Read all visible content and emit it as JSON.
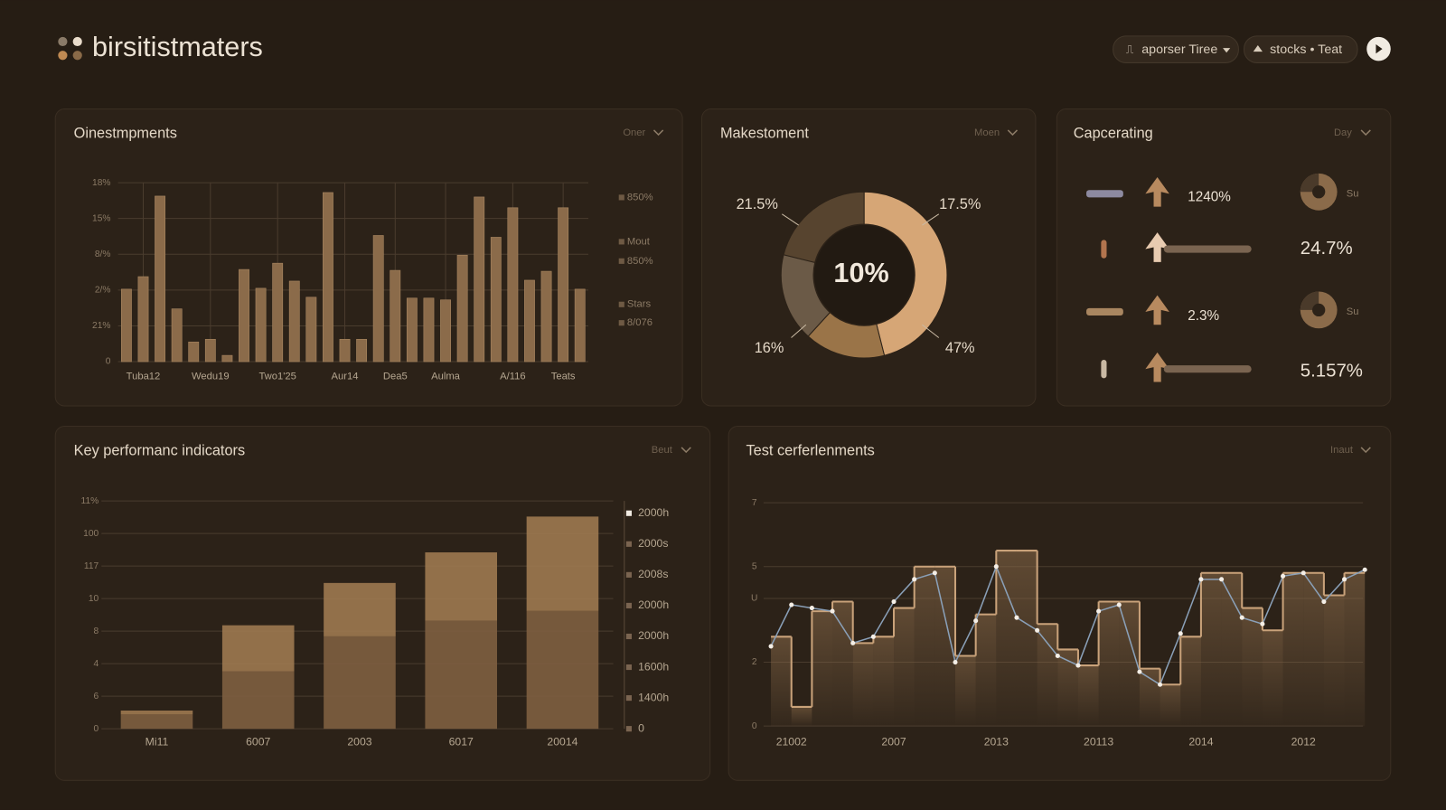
{
  "header": {
    "brand": "birsitistmaters",
    "buttons": [
      "aporser Tiree",
      "stocks • Teat"
    ]
  },
  "chart_data": [
    {
      "type": "bar",
      "title": "Oinestmpments",
      "dropdown": "Oner",
      "categories": [
        null,
        "Tuba12",
        null,
        null,
        null,
        "Wedu19",
        null,
        null,
        null,
        "Two1'25",
        null,
        null,
        null,
        "Aur14",
        null,
        null,
        "Dea5",
        null,
        null,
        "Aulma",
        null,
        null,
        null,
        "A/116",
        null,
        null,
        "Teats",
        null
      ],
      "values": [
        8.1,
        9.5,
        18.5,
        5.9,
        2.2,
        2.5,
        0.7,
        10.3,
        8.2,
        11,
        9,
        7.2,
        18.9,
        2.5,
        2.5,
        14.1,
        10.2,
        7.1,
        7.1,
        6.9,
        11.9,
        18.4,
        13.9,
        17.2,
        9.1,
        10.1,
        17.2,
        8.1
      ],
      "color": "#8b6b4a",
      "ylim": [
        0,
        20
      ],
      "yticks": [
        0,
        {
          "value": 4,
          "label": "21%"
        },
        {
          "value": 8,
          "label": "2/%"
        },
        {
          "value": 12,
          "label": "8/%"
        },
        {
          "value": 16,
          "label": "15%"
        },
        {
          "value": 20,
          "label": "18%"
        }
      ],
      "side_labels": [
        "850%",
        "Mout",
        "850%",
        "Stars",
        "8/076"
      ],
      "grid": true
    },
    {
      "type": "donut",
      "title": "Makestoment",
      "dropdown": "Moen",
      "center_label": "10%",
      "values": [
        47,
        16,
        17.5,
        21.5
      ],
      "value_labels": [
        "47%",
        "16%",
        "17.5%",
        "21.5%"
      ],
      "colors": [
        "#d6a676",
        "#9a7448",
        "#6b5a47",
        "#57442f"
      ]
    },
    {
      "type": "indicator",
      "title": "Capcerating",
      "dropdown": "Day",
      "values": [
        1240,
        24.7,
        2.3,
        5.157
      ],
      "value_labels": [
        "1240%",
        "24.7%",
        "2.3%",
        "5.157%"
      ],
      "gauge_labels": [
        "Su",
        null,
        "Su",
        null
      ]
    },
    {
      "type": "stacked-bar",
      "title": "Key performanc indicators",
      "dropdown": "Beut",
      "categories": [
        "Mi11",
        "6007",
        "2003",
        "6017",
        "20014"
      ],
      "series": [
        {
          "color": "#7d5e40",
          "values": [
            2.2,
            8.8,
            14.2,
            16.6,
            18.1
          ]
        },
        {
          "color": "#9b774f",
          "values": [
            0.6,
            7.1,
            8.2,
            10.5,
            14.5
          ]
        }
      ],
      "ylim": [
        0,
        35
      ],
      "yticks": [
        0,
        {
          "value": 5,
          "label": "6"
        },
        {
          "value": 10,
          "label": "4"
        },
        {
          "value": 15,
          "label": "8"
        },
        {
          "value": 20,
          "label": "10"
        },
        {
          "value": 25,
          "label": "117"
        },
        {
          "value": 30,
          "label": "100"
        },
        {
          "value": 35,
          "label": "11%"
        }
      ],
      "y2lim": [
        0,
        7.4
      ],
      "y2ticks": [
        0,
        {
          "value": 1,
          "label": "1400h"
        },
        {
          "value": 2,
          "label": "1600h"
        },
        {
          "value": 3,
          "label": "2000h"
        },
        {
          "value": 4,
          "label": "2000h"
        },
        {
          "value": 5,
          "label": "2008s"
        },
        {
          "value": 6,
          "label": "2000s"
        },
        {
          "value": 7,
          "label": "2000h"
        }
      ],
      "grid": true
    },
    {
      "type": "line",
      "title": "Test cerferlenments",
      "dropdown": "Inaut",
      "categories": [
        null,
        "21002",
        null,
        null,
        null,
        null,
        "2007",
        null,
        null,
        null,
        null,
        "2013",
        null,
        null,
        null,
        null,
        "20113",
        null,
        null,
        null,
        null,
        "2014",
        null,
        null,
        null,
        null,
        "2012",
        null,
        null,
        null
      ],
      "series": [
        {
          "color": "#c9a27a",
          "style": "step",
          "values": [
            2.8,
            0.6,
            3.6,
            3.9,
            2.6,
            2.8,
            3.7,
            5.0,
            5.0,
            2.2,
            3.5,
            5.5,
            5.5,
            3.2,
            2.4,
            1.9,
            3.9,
            3.9,
            1.8,
            1.3,
            2.8,
            4.8,
            4.8,
            3.7,
            3.0,
            4.8,
            4.8,
            4.1,
            4.8,
            4.8
          ]
        },
        {
          "color": "#8aa0b8",
          "values": [
            2.5,
            3.8,
            3.7,
            3.6,
            2.6,
            2.8,
            3.9,
            4.6,
            4.8,
            2.0,
            3.3,
            5.0,
            3.4,
            3.0,
            2.2,
            1.9,
            3.6,
            3.8,
            1.7,
            1.3,
            2.9,
            4.6,
            4.6,
            3.4,
            3.2,
            4.7,
            4.8,
            3.9,
            4.6,
            4.9
          ]
        }
      ],
      "ylim": [
        0,
        7
      ],
      "yticks": [
        0,
        2,
        {
          "value": 4,
          "label": "U"
        },
        5,
        7
      ],
      "grid": true
    }
  ]
}
